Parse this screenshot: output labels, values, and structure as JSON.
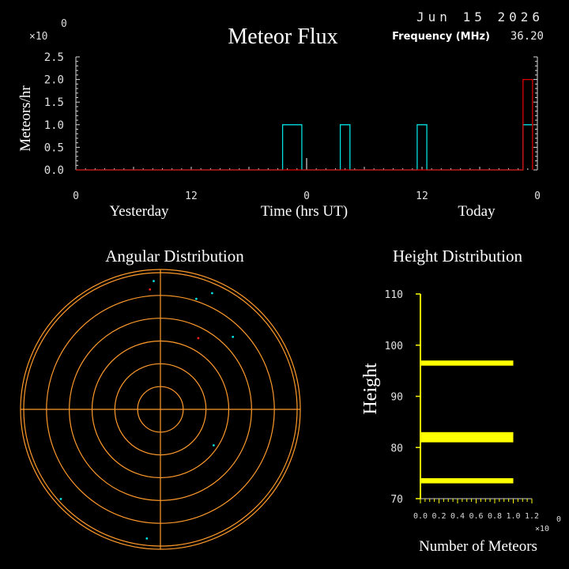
{
  "header": {
    "date": "Jun 15 2026",
    "frequency_label": "Frequency (MHz)",
    "frequency_value": "36.20"
  },
  "chart_data": [
    {
      "type": "line",
      "title": "Meteor Flux",
      "ylabel": "Meteors/hr",
      "xlabel": "Time (hrs UT)",
      "y_multiplier": "×10",
      "y_exponent": "0",
      "ylim": [
        0,
        2.5
      ],
      "y_ticks": [
        "0.0",
        "0.5",
        "1.0",
        "1.5",
        "2.0",
        "2.5"
      ],
      "x_tick_labels": [
        "0",
        "12",
        "0",
        "12",
        "0"
      ],
      "day_labels": [
        "Yesterday",
        "Today"
      ],
      "xlim": [
        0,
        48
      ],
      "series": [
        {
          "color": "#00e0e0",
          "x": [
            0,
            21.5,
            21.5,
            23.5,
            23.5,
            27.5,
            27.5,
            28.5,
            28.5,
            35.5,
            35.5,
            36.5,
            36.5,
            46.5,
            46.5,
            47.5
          ],
          "y": [
            0,
            0,
            1,
            1,
            0,
            0,
            1,
            1,
            0,
            0,
            1,
            1,
            0,
            0,
            1,
            1
          ]
        },
        {
          "color": "#e00000",
          "x": [
            0,
            46.5,
            46.5,
            47.5,
            47.5
          ],
          "y": [
            0,
            0,
            2,
            2,
            0
          ]
        }
      ]
    },
    {
      "type": "scatter",
      "title": "Angular Distribution",
      "rings": 6,
      "points": [
        {
          "az": 357,
          "r": 0.94,
          "color": "#00e0e0"
        },
        {
          "az": 355,
          "r": 0.88,
          "color": "#ff2020"
        },
        {
          "az": 18,
          "r": 0.85,
          "color": "#00e0e0"
        },
        {
          "az": 24,
          "r": 0.93,
          "color": "#00e0e0"
        },
        {
          "az": 28,
          "r": 0.59,
          "color": "#ff2020"
        },
        {
          "az": 45,
          "r": 0.75,
          "color": "#00e0e0"
        },
        {
          "az": 124,
          "r": 0.47,
          "color": "#00e0e0"
        },
        {
          "az": 186,
          "r": 0.95,
          "color": "#00e0e0"
        },
        {
          "az": 228,
          "r": 0.98,
          "color": "#00e0e0"
        }
      ]
    },
    {
      "type": "bar",
      "title": "Height Distribution",
      "xlabel": "Number of Meteors",
      "ylabel": "Height",
      "x_multiplier": "×10",
      "x_exponent": "0",
      "xlim": [
        0,
        1.2
      ],
      "ylim": [
        70,
        110
      ],
      "y_ticks": [
        "70",
        "80",
        "90",
        "100",
        "110"
      ],
      "x_ticks": [
        "0.0",
        "0.2",
        "0.4",
        "0.6",
        "0.8",
        "1.0",
        "1.2"
      ],
      "bars": [
        {
          "height": 96.5,
          "thickness": 1.0,
          "value": 1.0
        },
        {
          "height": 82.0,
          "thickness": 2.0,
          "value": 1.0
        },
        {
          "height": 73.5,
          "thickness": 1.0,
          "value": 1.0
        }
      ]
    }
  ]
}
